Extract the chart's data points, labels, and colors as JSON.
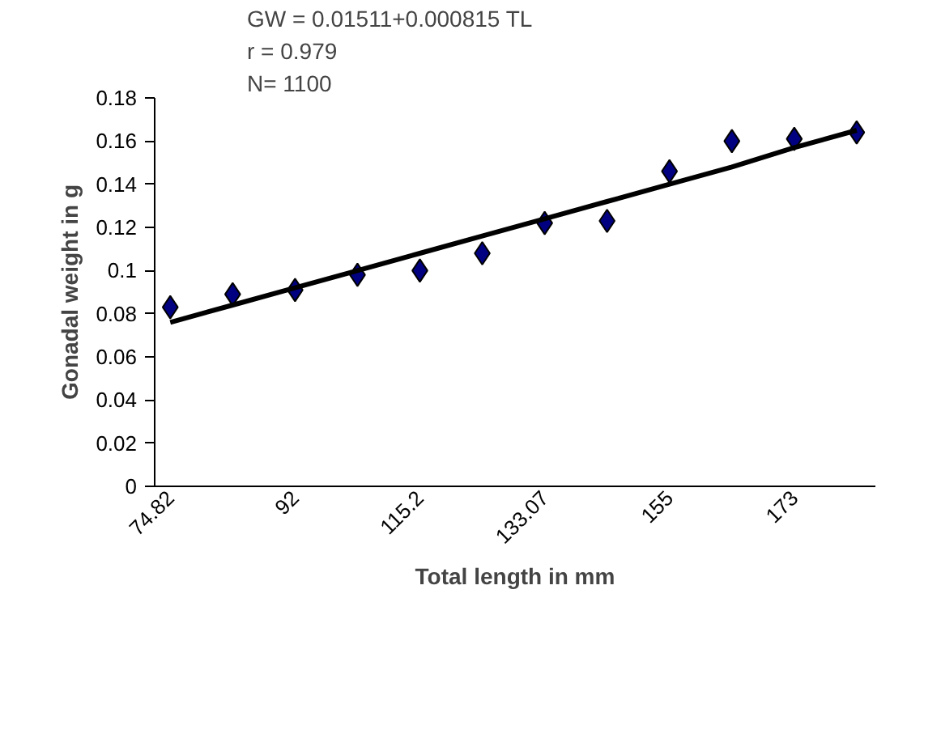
{
  "chart_data": {
    "type": "scatter",
    "xlabel": "Total length in mm",
    "ylabel": "Gonadal weight in g",
    "categories": [
      "74.82",
      null,
      "92",
      null,
      "115.2",
      null,
      "133.07",
      null,
      "155",
      null,
      "173",
      null
    ],
    "series": [
      {
        "color": "#000080",
        "marker": "diamond",
        "values": [
          0.083,
          0.089,
          0.091,
          0.098,
          0.1,
          0.108,
          0.122,
          0.123,
          0.146,
          0.16,
          0.161,
          0.164
        ]
      },
      {
        "type": "line",
        "color": "#000000",
        "values": [
          0.076,
          0.084,
          0.092,
          0.1,
          0.108,
          0.116,
          0.124,
          0.132,
          0.14,
          0.148,
          0.157,
          0.165
        ]
      }
    ],
    "ylim": [
      0,
      0.18
    ],
    "yticks": [
      0,
      0.02,
      0.04,
      0.06,
      0.08,
      0.1,
      0.12,
      0.14,
      0.16,
      0.18
    ],
    "annotations": [
      "GW = 0.01511+0.000815 TL",
      "r = 0.979",
      "N= 1100"
    ],
    "grid": false
  }
}
